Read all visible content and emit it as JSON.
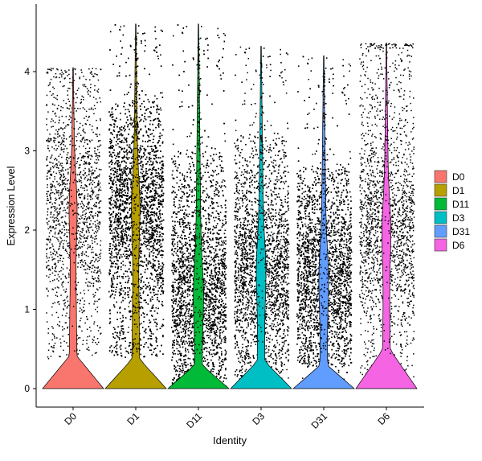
{
  "chart_data": {
    "type": "violin",
    "categories": [
      "D0",
      "D1",
      "D11",
      "D3",
      "D31",
      "D6"
    ],
    "xlabel": "Identity",
    "ylabel": "Expression Level",
    "ylim": [
      -0.25,
      4.65
    ],
    "yticks": [
      0,
      1,
      2,
      3,
      4
    ],
    "grid": false,
    "legend_position": "right",
    "legend": [
      "D0",
      "D1",
      "D11",
      "D3",
      "D31",
      "D6"
    ],
    "series": [
      {
        "name": "D0",
        "color": "#F8766D",
        "max": 4.05,
        "zero_bulge_height": 0.42,
        "points": 1600,
        "band_low": 0.4,
        "band_high": 3.9,
        "dense_center": 2.3
      },
      {
        "name": "D1",
        "color": "#B79F00",
        "max": 4.6,
        "zero_bulge_height": 0.38,
        "points": 7000,
        "band_low": 0.4,
        "band_high": 3.6,
        "dense_center": 2.3
      },
      {
        "name": "D11",
        "color": "#00BA38",
        "max": 4.6,
        "zero_bulge_height": 0.3,
        "points": 5500,
        "band_low": 0.0,
        "band_high": 3.0,
        "dense_center": 1.2
      },
      {
        "name": "D3",
        "color": "#00BFC4",
        "max": 4.32,
        "zero_bulge_height": 0.35,
        "points": 3800,
        "band_low": 0.1,
        "band_high": 3.2,
        "dense_center": 1.5
      },
      {
        "name": "D31",
        "color": "#619CFF",
        "max": 4.2,
        "zero_bulge_height": 0.3,
        "points": 5500,
        "band_low": 0.3,
        "band_high": 2.8,
        "dense_center": 1.4
      },
      {
        "name": "D6",
        "color": "#F564E3",
        "max": 4.36,
        "zero_bulge_height": 0.5,
        "points": 1900,
        "band_low": 0.1,
        "band_high": 4.3,
        "dense_center": 2.0
      }
    ]
  }
}
